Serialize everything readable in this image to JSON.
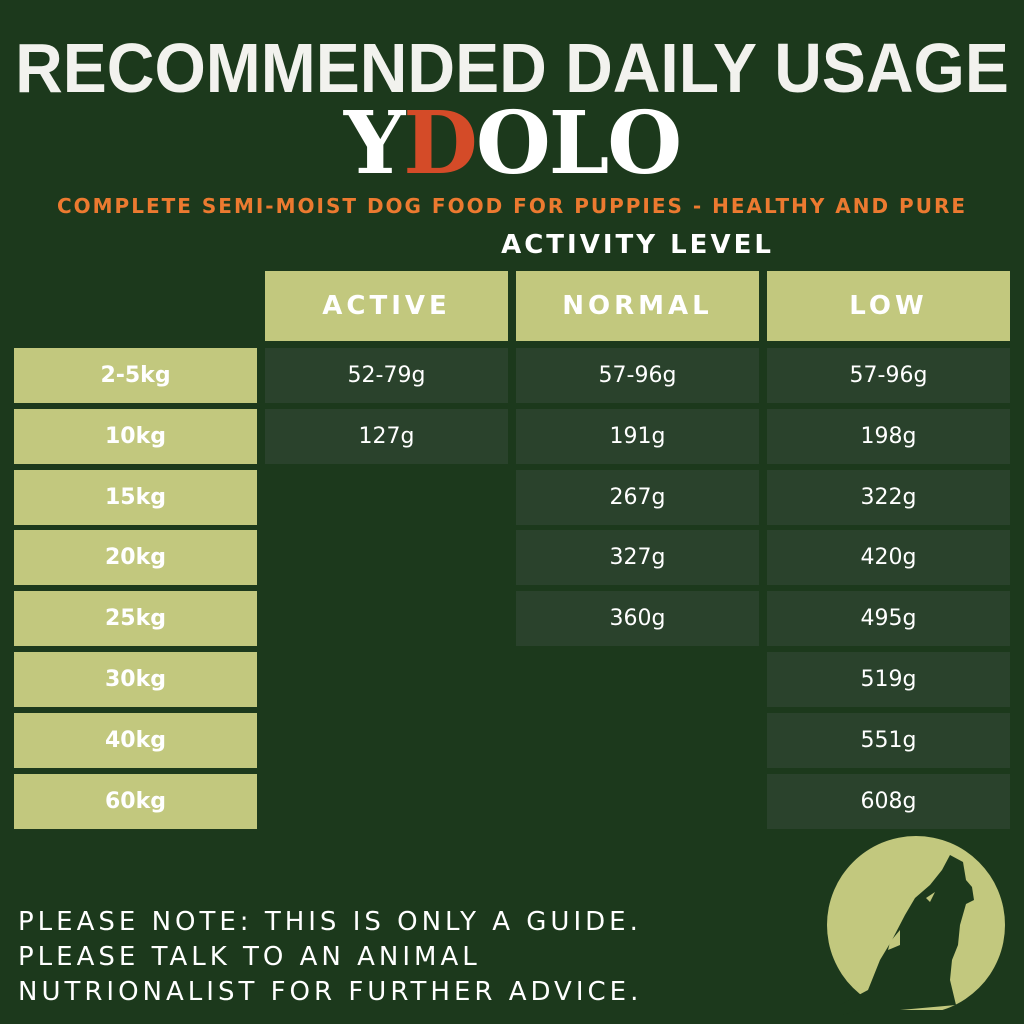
{
  "title": "RECOMMENDED DAILY USAGE",
  "brand": {
    "prefix": "Y",
    "accent": "D",
    "suffix": "OLO"
  },
  "tagline": "COMPLETE SEMI-MOIST DOG FOOD FOR PUPPIES - HEALTHY AND PURE",
  "table": {
    "group_header": "ACTIVITY LEVEL",
    "columns": [
      "ACTIVE",
      "NORMAL",
      "LOW"
    ],
    "rows": [
      {
        "weight": "2-5kg",
        "values": [
          "52-79g",
          "57-96g",
          "57-96g"
        ]
      },
      {
        "weight": "10kg",
        "values": [
          "127g",
          "191g",
          "198g"
        ]
      },
      {
        "weight": "15kg",
        "values": [
          null,
          "267g",
          "322g"
        ]
      },
      {
        "weight": "20kg",
        "values": [
          null,
          "327g",
          "420g"
        ]
      },
      {
        "weight": "25kg",
        "values": [
          null,
          "360g",
          "495g"
        ]
      },
      {
        "weight": "30kg",
        "values": [
          null,
          null,
          "519g"
        ]
      },
      {
        "weight": "40kg",
        "values": [
          null,
          null,
          "551g"
        ]
      },
      {
        "weight": "60kg",
        "values": [
          null,
          null,
          "608g"
        ]
      }
    ]
  },
  "note": [
    "PLEASE NOTE: THIS IS ONLY A GUIDE.",
    "PLEASE TALK TO AN ANIMAL",
    "NUTRIONALIST FOR FURTHER ADVICE."
  ],
  "logo_icon": "howling-wolf-moon-icon",
  "colors": {
    "background": "#1c391c",
    "header_cell": "#c2c87e",
    "value_cell": "#2a422c",
    "tagline": "#ec7a30",
    "brand_accent": "#d44b28"
  }
}
